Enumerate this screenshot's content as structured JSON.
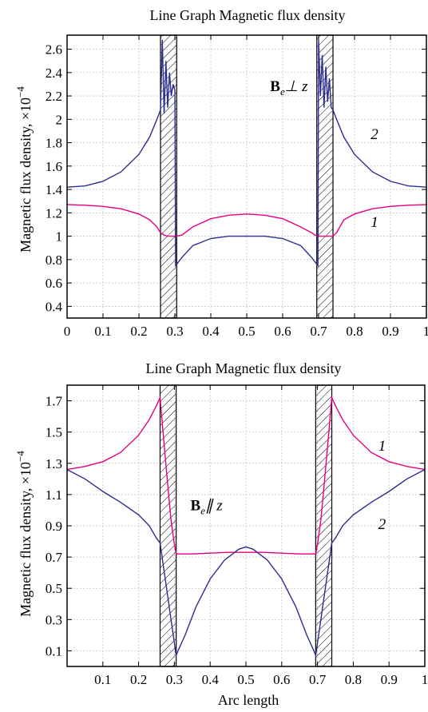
{
  "colors": {
    "curve1": "#e6007e",
    "curve2": "#2b2e8f",
    "frame": "#000000",
    "grid": "#bdbdbd"
  },
  "chart_data": [
    {
      "type": "line",
      "title": "Line Graph Magnetic flux density",
      "xlabel": "",
      "ylabel": "Magnetic flux density, ×10",
      "ylabel_exp": "−4",
      "xlim": [
        0,
        1
      ],
      "ylim": [
        0.3,
        2.72
      ],
      "grid": true,
      "x_ticks": [
        0,
        0.1,
        0.2,
        0.3,
        0.4,
        0.5,
        0.6,
        0.7,
        0.8,
        0.9,
        1
      ],
      "x_tick_labels": [
        "0",
        "0.1",
        "0.2",
        "0.3",
        "0.4",
        "0.5",
        "0.6",
        "0.7",
        "0.8",
        "0.9",
        "1"
      ],
      "y_ticks": [
        0.4,
        0.6,
        0.8,
        1,
        1.2,
        1.4,
        1.6,
        1.8,
        2,
        2.2,
        2.4,
        2.6
      ],
      "y_tick_labels": [
        "0.4",
        "0.6",
        "0.8",
        "1",
        "1.2",
        "1.4",
        "1.6",
        "1.8",
        "2",
        "2.2",
        "2.4",
        "2.6"
      ],
      "annotation": {
        "main": "B",
        "sub": "e",
        "rest": "⊥ z",
        "x": 0.565,
        "y": 2.24
      },
      "hatched_regions": [
        [
          0.26,
          0.305
        ],
        [
          0.695,
          0.74
        ]
      ],
      "series": [
        {
          "label": "1",
          "label_x": 0.845,
          "label_y": 1.08,
          "color_key": "curve1",
          "x": [
            0,
            0.05,
            0.1,
            0.15,
            0.2,
            0.23,
            0.25,
            0.26,
            0.27,
            0.28,
            0.29,
            0.3,
            0.305,
            0.32,
            0.35,
            0.4,
            0.45,
            0.5,
            0.55,
            0.6,
            0.65,
            0.68,
            0.695,
            0.7,
            0.71,
            0.72,
            0.73,
            0.74,
            0.75,
            0.77,
            0.8,
            0.85,
            0.9,
            0.95,
            1
          ],
          "y": [
            1.27,
            1.265,
            1.255,
            1.235,
            1.19,
            1.14,
            1.08,
            1.03,
            1.01,
            1.0,
            1.0,
            1.0,
            1.0,
            1.01,
            1.08,
            1.15,
            1.18,
            1.19,
            1.18,
            1.15,
            1.08,
            1.03,
            1.0,
            1.0,
            1.0,
            1.0,
            1.0,
            1.0,
            1.03,
            1.14,
            1.19,
            1.235,
            1.255,
            1.265,
            1.27
          ]
        },
        {
          "label": "2",
          "label_x": 0.845,
          "label_y": 1.83,
          "color_key": "curve2",
          "x": [
            0,
            0.05,
            0.1,
            0.15,
            0.2,
            0.23,
            0.25,
            0.26,
            0.265,
            0.27,
            0.275,
            0.28,
            0.285,
            0.29,
            0.295,
            0.3,
            0.302,
            0.305,
            0.32,
            0.35,
            0.4,
            0.45,
            0.5,
            0.55,
            0.6,
            0.65,
            0.68,
            0.695,
            0.698,
            0.7,
            0.705,
            0.71,
            0.715,
            0.72,
            0.725,
            0.73,
            0.735,
            0.74,
            0.75,
            0.77,
            0.8,
            0.85,
            0.9,
            0.95,
            1
          ],
          "y": [
            1.42,
            1.43,
            1.47,
            1.55,
            1.7,
            1.85,
            2.0,
            2.08,
            2.68,
            2.05,
            2.5,
            2.1,
            2.4,
            2.2,
            2.3,
            2.25,
            0.75,
            0.76,
            0.82,
            0.92,
            0.98,
            1.0,
            1.0,
            1.0,
            0.98,
            0.92,
            0.82,
            0.76,
            0.75,
            2.68,
            2.2,
            2.55,
            2.1,
            2.45,
            2.15,
            2.35,
            2.1,
            2.08,
            2.0,
            1.85,
            1.7,
            1.55,
            1.47,
            1.43,
            1.42
          ]
        }
      ]
    },
    {
      "type": "line",
      "title": "Line Graph Magnetic flux density",
      "xlabel": "Arc length",
      "ylabel": "Magnetic flux density, ×10",
      "ylabel_exp": "−4",
      "xlim": [
        0,
        1
      ],
      "ylim": [
        0,
        1.8
      ],
      "grid": true,
      "x_ticks": [
        0.1,
        0.2,
        0.3,
        0.4,
        0.5,
        0.6,
        0.7,
        0.8,
        0.9,
        1
      ],
      "x_tick_labels": [
        "0.1",
        "0.2",
        "0.3",
        "0.4",
        "0.5",
        "0.6",
        "0.7",
        "0.8",
        "0.9",
        "1"
      ],
      "y_ticks": [
        0.1,
        0.3,
        0.5,
        0.7,
        0.9,
        1.1,
        1.3,
        1.5,
        1.7
      ],
      "y_tick_labels": [
        "0.1",
        "0.3",
        "0.5",
        "0.7",
        "0.9",
        "1.1",
        "1.3",
        "1.5",
        "1.7"
      ],
      "annotation": {
        "main": "B",
        "sub": "e",
        "rest": "∥ z",
        "x": 0.345,
        "y": 1.0
      },
      "hatched_regions": [
        [
          0.26,
          0.305
        ],
        [
          0.695,
          0.74
        ]
      ],
      "series": [
        {
          "label": "1",
          "label_x": 0.87,
          "label_y": 1.38,
          "color_key": "curve1",
          "x": [
            0,
            0.05,
            0.1,
            0.15,
            0.2,
            0.23,
            0.25,
            0.26,
            0.27,
            0.28,
            0.29,
            0.3,
            0.305,
            0.31,
            0.35,
            0.4,
            0.45,
            0.5,
            0.55,
            0.6,
            0.65,
            0.69,
            0.695,
            0.7,
            0.71,
            0.72,
            0.73,
            0.74,
            0.75,
            0.77,
            0.8,
            0.85,
            0.9,
            0.95,
            1
          ],
          "y": [
            1.26,
            1.28,
            1.31,
            1.37,
            1.48,
            1.58,
            1.67,
            1.72,
            1.45,
            1.2,
            0.95,
            0.78,
            0.72,
            0.72,
            0.72,
            0.725,
            0.73,
            0.73,
            0.73,
            0.725,
            0.72,
            0.72,
            0.72,
            0.78,
            0.95,
            1.2,
            1.45,
            1.72,
            1.67,
            1.58,
            1.48,
            1.37,
            1.31,
            1.28,
            1.26
          ]
        },
        {
          "label": "2",
          "label_x": 0.87,
          "label_y": 0.88,
          "color_key": "curve2",
          "x": [
            0,
            0.05,
            0.1,
            0.15,
            0.2,
            0.23,
            0.25,
            0.26,
            0.305,
            0.31,
            0.33,
            0.36,
            0.4,
            0.44,
            0.48,
            0.5,
            0.52,
            0.56,
            0.6,
            0.64,
            0.67,
            0.69,
            0.695,
            0.74,
            0.75,
            0.77,
            0.8,
            0.85,
            0.9,
            0.95,
            1
          ],
          "y": [
            1.26,
            1.2,
            1.12,
            1.05,
            0.97,
            0.9,
            0.82,
            0.79,
            0.07,
            0.1,
            0.2,
            0.38,
            0.56,
            0.68,
            0.75,
            0.765,
            0.75,
            0.68,
            0.56,
            0.38,
            0.2,
            0.1,
            0.07,
            0.79,
            0.82,
            0.9,
            0.97,
            1.05,
            1.12,
            1.2,
            1.26
          ]
        }
      ]
    }
  ]
}
